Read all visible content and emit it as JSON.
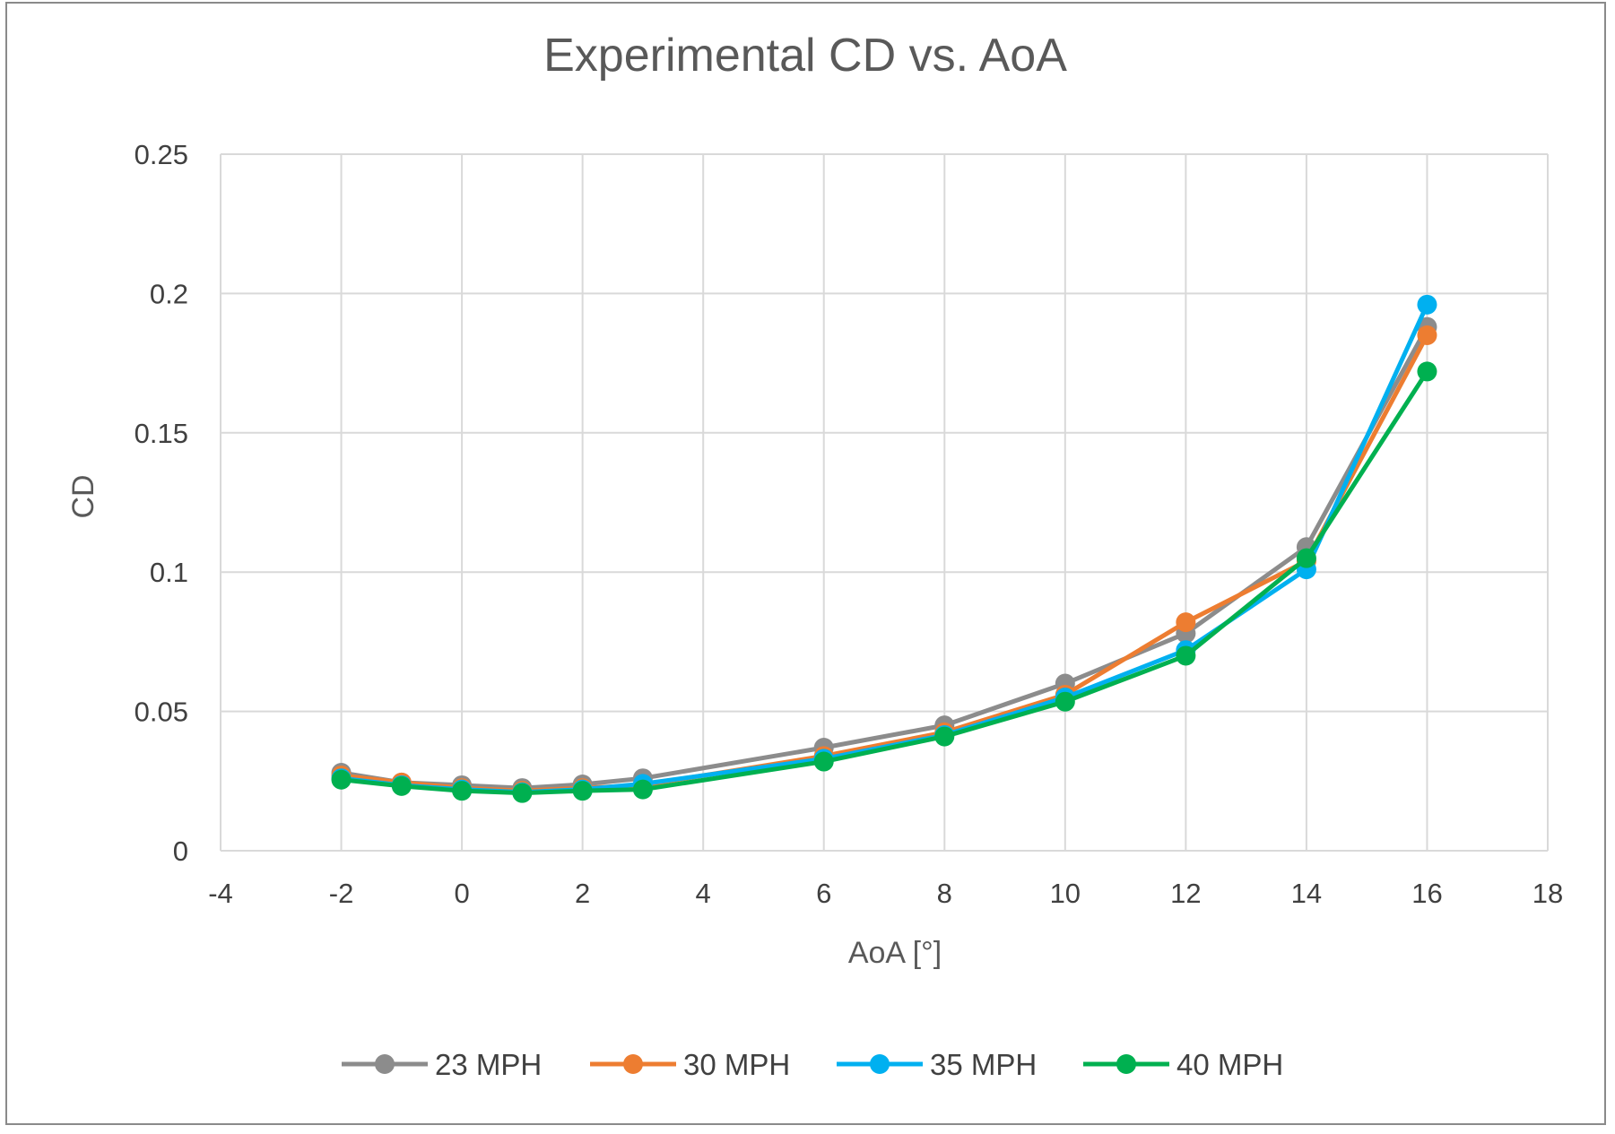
{
  "chart_data": {
    "type": "line",
    "title": "Experimental CD vs. AoA",
    "xlabel": "AoA [°]",
    "ylabel": "CD",
    "xlim": [
      -4,
      18
    ],
    "ylim": [
      0,
      0.25
    ],
    "x_ticks": [
      "-4",
      "-2",
      "0",
      "2",
      "4",
      "6",
      "8",
      "10",
      "12",
      "14",
      "16",
      "18"
    ],
    "y_ticks": [
      "0",
      "0.05",
      "0.1",
      "0.15",
      "0.2",
      "0.25"
    ],
    "x": [
      -2,
      -1,
      0,
      1,
      2,
      3,
      6,
      8,
      10,
      12,
      14,
      16
    ],
    "grid": true,
    "legend_position": "bottom",
    "series": [
      {
        "name": "23 MPH",
        "color": "#8c8c8c",
        "values": [
          0.028,
          0.0245,
          0.0235,
          0.0225,
          0.0238,
          0.026,
          0.037,
          0.045,
          0.06,
          0.078,
          0.109,
          0.188
        ]
      },
      {
        "name": "30 MPH",
        "color": "#ed7d31",
        "values": [
          0.027,
          0.0245,
          0.0225,
          0.0215,
          0.0225,
          0.0235,
          0.034,
          0.0425,
          0.056,
          0.082,
          0.104,
          0.185
        ]
      },
      {
        "name": "35 MPH",
        "color": "#00b0f0",
        "values": [
          0.026,
          0.0235,
          0.022,
          0.021,
          0.022,
          0.024,
          0.033,
          0.0415,
          0.055,
          0.072,
          0.101,
          0.196
        ]
      },
      {
        "name": "40 MPH",
        "color": "#00b050",
        "values": [
          0.0255,
          0.0232,
          0.0215,
          0.0207,
          0.0215,
          0.022,
          0.032,
          0.041,
          0.0535,
          0.07,
          0.105,
          0.172
        ]
      }
    ]
  }
}
